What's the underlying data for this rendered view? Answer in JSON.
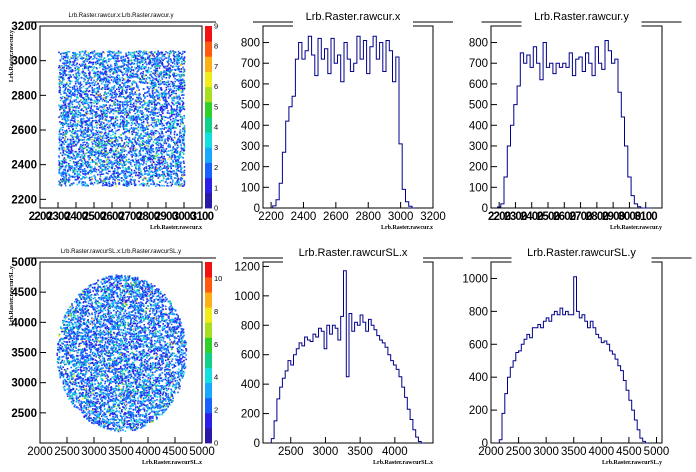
{
  "chart_data": [
    {
      "type": "heatmap",
      "title": "Lrb.Raster.rawcur.x:Lrb.Raster.rawcur.y",
      "xlabel": "Lrb.Raster.rawcur.x",
      "ylabel": "Lrb.Raster.rawcur.y",
      "xlim": [
        2200,
        3100
      ],
      "ylim": [
        2150,
        3200
      ],
      "xticks": [
        "2200",
        "2300",
        "2400",
        "2500",
        "2600",
        "2700",
        "2800",
        "2900",
        "3000",
        "3100"
      ],
      "yticks": [
        "2200",
        "2400",
        "2600",
        "2800",
        "3000",
        "3200"
      ],
      "zticks": [
        "0",
        "1",
        "2",
        "3",
        "4",
        "5",
        "6",
        "7",
        "8",
        "9"
      ],
      "zmax": 9,
      "region": {
        "shape": "rect",
        "x": [
          2300,
          3000
        ],
        "y": [
          2280,
          3060
        ]
      }
    },
    {
      "type": "bar",
      "histtype": "step",
      "title": "Lrb.Raster.rawcur.x",
      "xlabel": "Lrb.Raster.rawcur.x",
      "xlim": [
        2150,
        3200
      ],
      "ylim": [
        0,
        880
      ],
      "xticks": [
        "2200",
        "2400",
        "2600",
        "2800",
        "3000",
        "3200"
      ],
      "yticks": [
        "0",
        "100",
        "200",
        "300",
        "400",
        "500",
        "600",
        "700",
        "800"
      ],
      "edges": [
        2210,
        2230,
        2250,
        2270,
        2290,
        2310,
        2330,
        2350,
        2370,
        2390,
        2410,
        2430,
        2450,
        2470,
        2490,
        2510,
        2530,
        2550,
        2570,
        2590,
        2610,
        2630,
        2650,
        2670,
        2690,
        2710,
        2730,
        2750,
        2770,
        2790,
        2810,
        2830,
        2850,
        2870,
        2890,
        2910,
        2930,
        2950,
        2970,
        2990,
        3010,
        3030,
        3050,
        3070,
        3090
      ],
      "values": [
        10,
        40,
        120,
        270,
        420,
        490,
        540,
        720,
        800,
        720,
        760,
        830,
        740,
        640,
        820,
        720,
        770,
        650,
        820,
        700,
        740,
        610,
        800,
        720,
        660,
        700,
        830,
        720,
        810,
        650,
        780,
        830,
        720,
        800,
        660,
        810,
        760,
        610,
        730,
        310,
        90,
        30,
        8,
        0
      ]
    },
    {
      "type": "bar",
      "histtype": "step",
      "title": "Lrb.Raster.rawcur.y",
      "xlabel": "Lrb.Raster.rawcur.y",
      "xlim": [
        2150,
        3200
      ],
      "ylim": [
        0,
        880
      ],
      "xticks": [
        "2200",
        "2300",
        "2400",
        "2500",
        "2600",
        "2700",
        "2800",
        "2900",
        "3000",
        "3100"
      ],
      "yticks": [
        "0",
        "100",
        "200",
        "300",
        "400",
        "500",
        "600",
        "700",
        "800"
      ],
      "edges": [
        2190,
        2210,
        2230,
        2250,
        2270,
        2290,
        2310,
        2330,
        2350,
        2370,
        2390,
        2410,
        2430,
        2450,
        2470,
        2490,
        2510,
        2530,
        2550,
        2570,
        2590,
        2610,
        2630,
        2650,
        2670,
        2690,
        2710,
        2730,
        2750,
        2770,
        2790,
        2810,
        2830,
        2850,
        2870,
        2890,
        2910,
        2930,
        2950,
        2970,
        2990,
        3010,
        3030,
        3050,
        3070,
        3090,
        3110,
        3130
      ],
      "values": [
        5,
        20,
        150,
        300,
        400,
        500,
        590,
        750,
        700,
        740,
        680,
        780,
        700,
        620,
        800,
        680,
        700,
        650,
        700,
        680,
        700,
        680,
        750,
        640,
        720,
        730,
        660,
        750,
        700,
        640,
        780,
        700,
        670,
        810,
        760,
        700,
        720,
        560,
        440,
        300,
        150,
        60,
        20,
        6,
        0,
        0,
        0
      ]
    },
    {
      "type": "heatmap",
      "title": "Lrb.Raster.rawcurSL.x:Lrb.Raster.rawcurSL.y",
      "xlabel": "Lrb.Raster.rawcurSL.x",
      "ylabel": "Lrb.Raster.rawcurSL.y",
      "xlim": [
        2000,
        5000
      ],
      "ylim": [
        2000,
        5000
      ],
      "xticks": [
        "2000",
        "2500",
        "3000",
        "3500",
        "4000",
        "4500",
        "5000"
      ],
      "yticks": [
        "2500",
        "3000",
        "3500",
        "4000",
        "4500",
        "5000"
      ],
      "zticks": [
        "0",
        "2",
        "4",
        "6",
        "8",
        "10"
      ],
      "zmax": 11,
      "region": {
        "shape": "ellipse",
        "cx": 3500,
        "cy": 3500,
        "rx": 1200,
        "ry": 1300
      }
    },
    {
      "type": "bar",
      "histtype": "step",
      "title": "Lrb.Raster.rawcurSL.x",
      "xlabel": "Lrb.Raster.rawcurSL.x",
      "xlim": [
        2100,
        4550
      ],
      "ylim": [
        0,
        1230
      ],
      "xticks": [
        "2500",
        "3000",
        "3500",
        "4000"
      ],
      "yticks": [
        "0",
        "200",
        "400",
        "600",
        "800",
        "1000",
        "1200"
      ],
      "edges": [
        2220,
        2260,
        2300,
        2340,
        2380,
        2420,
        2460,
        2500,
        2540,
        2580,
        2620,
        2660,
        2700,
        2740,
        2780,
        2820,
        2860,
        2900,
        2940,
        2980,
        3020,
        3060,
        3100,
        3140,
        3180,
        3220,
        3260,
        3300,
        3340,
        3380,
        3420,
        3460,
        3500,
        3540,
        3580,
        3620,
        3660,
        3700,
        3740,
        3780,
        3820,
        3860,
        3900,
        3940,
        3980,
        4020,
        4060,
        4100,
        4140,
        4180,
        4220,
        4260,
        4300,
        4340,
        4380,
        4420
      ],
      "values": [
        30,
        150,
        300,
        380,
        440,
        490,
        560,
        530,
        600,
        640,
        680,
        660,
        720,
        700,
        690,
        740,
        720,
        780,
        760,
        640,
        800,
        740,
        800,
        780,
        700,
        860,
        1170,
        450,
        880,
        760,
        820,
        800,
        870,
        820,
        760,
        840,
        800,
        770,
        730,
        700,
        680,
        650,
        600,
        560,
        530,
        500,
        450,
        380,
        310,
        230,
        160,
        90,
        40,
        10,
        0
      ]
    },
    {
      "type": "bar",
      "histtype": "step",
      "title": "Lrb.Raster.rawcurSL.y",
      "xlabel": "Lrb.Raster.rawcurSL.y",
      "xlim": [
        2000,
        5100
      ],
      "ylim": [
        0,
        1100
      ],
      "xticks": [
        "2000",
        "2500",
        "3000",
        "3500",
        "4000",
        "4500",
        "5000"
      ],
      "yticks": [
        "0",
        "200",
        "400",
        "600",
        "800",
        "1000"
      ],
      "edges": [
        2150,
        2200,
        2250,
        2300,
        2350,
        2400,
        2450,
        2500,
        2550,
        2600,
        2650,
        2700,
        2750,
        2800,
        2850,
        2900,
        2950,
        3000,
        3050,
        3100,
        3150,
        3200,
        3250,
        3300,
        3350,
        3400,
        3450,
        3500,
        3550,
        3600,
        3650,
        3700,
        3750,
        3800,
        3850,
        3900,
        3950,
        4000,
        4050,
        4100,
        4150,
        4200,
        4250,
        4300,
        4350,
        4400,
        4450,
        4500,
        4550,
        4600,
        4650,
        4700,
        4750,
        4800,
        4850
      ],
      "values": [
        20,
        180,
        300,
        400,
        460,
        500,
        550,
        560,
        600,
        630,
        660,
        640,
        700,
        700,
        720,
        700,
        740,
        760,
        740,
        780,
        800,
        780,
        820,
        780,
        800,
        780,
        780,
        1010,
        800,
        760,
        780,
        740,
        700,
        740,
        700,
        660,
        640,
        610,
        620,
        600,
        560,
        540,
        510,
        470,
        440,
        380,
        320,
        260,
        200,
        140,
        80,
        30,
        10,
        0
      ]
    }
  ]
}
